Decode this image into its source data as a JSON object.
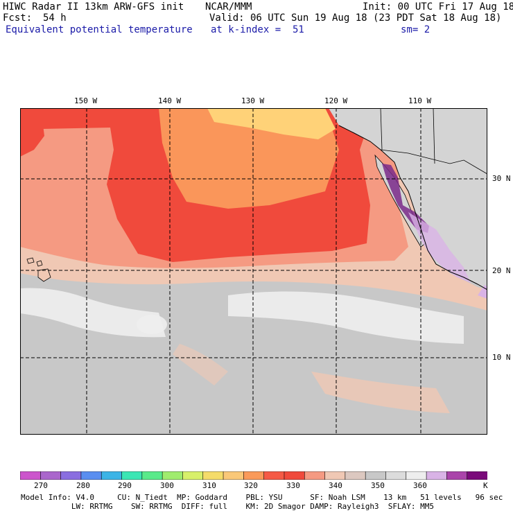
{
  "header": {
    "title": "HIWC Radar II 13km ARW-GFS init",
    "center": "NCAR/MMM",
    "init": "Init: 00 UTC Fri 17 Aug 18",
    "fcst_label": "Fcst:",
    "fcst_value": "54 h",
    "valid": "Valid: 06 UTC Sun 19 Aug 18 (23 PDT Sat 18 Aug 18)",
    "field": "Equivalent potential temperature",
    "level": "at k-index =  51",
    "smooth": "sm= 2"
  },
  "map": {
    "lon_labels": [
      "150 W",
      "140 W",
      "130 W",
      "120 W",
      "110 W"
    ],
    "lat_labels": [
      "30 N",
      "20 N",
      "10 N"
    ],
    "colors": {
      "ocean_gray": "#c8c8c8",
      "near_white": "#eeeeee",
      "peach": "#f0c8b4",
      "salmon": "#f59a82",
      "red": "#f04a3c",
      "orange": "#fa965a",
      "yellow": "#ffd278",
      "land_gray": "#d4d4d4",
      "purple": "#7a2a8a",
      "lavender": "#d9b3e6"
    }
  },
  "colorbar": {
    "ticks": [
      "270",
      "280",
      "290",
      "300",
      "310",
      "320",
      "330",
      "340",
      "350",
      "360"
    ],
    "unit": "K",
    "colors": [
      "#cc55cc",
      "#aa66cc",
      "#8a6ee0",
      "#5a8ef0",
      "#3cb4e6",
      "#3ce6b4",
      "#5aea8a",
      "#a0ec6e",
      "#d8f06a",
      "#f5dc6a",
      "#fac878",
      "#fa9a5a",
      "#f55a46",
      "#f04a3c",
      "#f59a82",
      "#f0c8b4",
      "#dcc8c0",
      "#c8c8c8",
      "#dcdcdc",
      "#eeeeee",
      "#d9b3e6",
      "#aa44aa",
      "#7a0a7a"
    ]
  },
  "footer": {
    "line1": "Model Info: V4.0     CU: N_Tiedt  MP: Goddard    PBL: YSU      SF: Noah LSM    13 km   51 levels   96 sec",
    "line2": "           LW: RRTMG    SW: RRTMG  DIFF: full    KM: 2D Smagor DAMP: Rayleigh3  SFLAY: MM5"
  }
}
